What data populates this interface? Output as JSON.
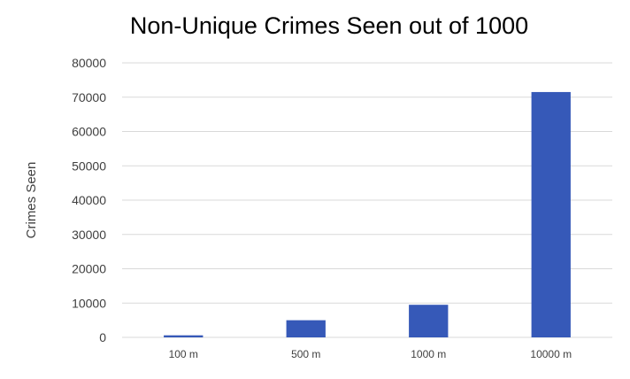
{
  "chart_data": {
    "type": "bar",
    "title": "Non-Unique Crimes Seen out of 1000",
    "xlabel": "",
    "ylabel": "Crimes Seen",
    "categories": [
      "100 m",
      "500 m",
      "1000 m",
      "10000 m"
    ],
    "series": [
      {
        "values": [
          600,
          5000,
          9500,
          71500
        ]
      }
    ],
    "ylim": [
      0,
      80000
    ],
    "yticks": [
      "0",
      "10000",
      "20000",
      "30000",
      "40000",
      "50000",
      "60000",
      "70000",
      "80000"
    ],
    "grid": true,
    "legend": "none",
    "colors": {
      "bar": "#3659B8",
      "grid": "#D9D9D9",
      "text": "#404040"
    }
  }
}
